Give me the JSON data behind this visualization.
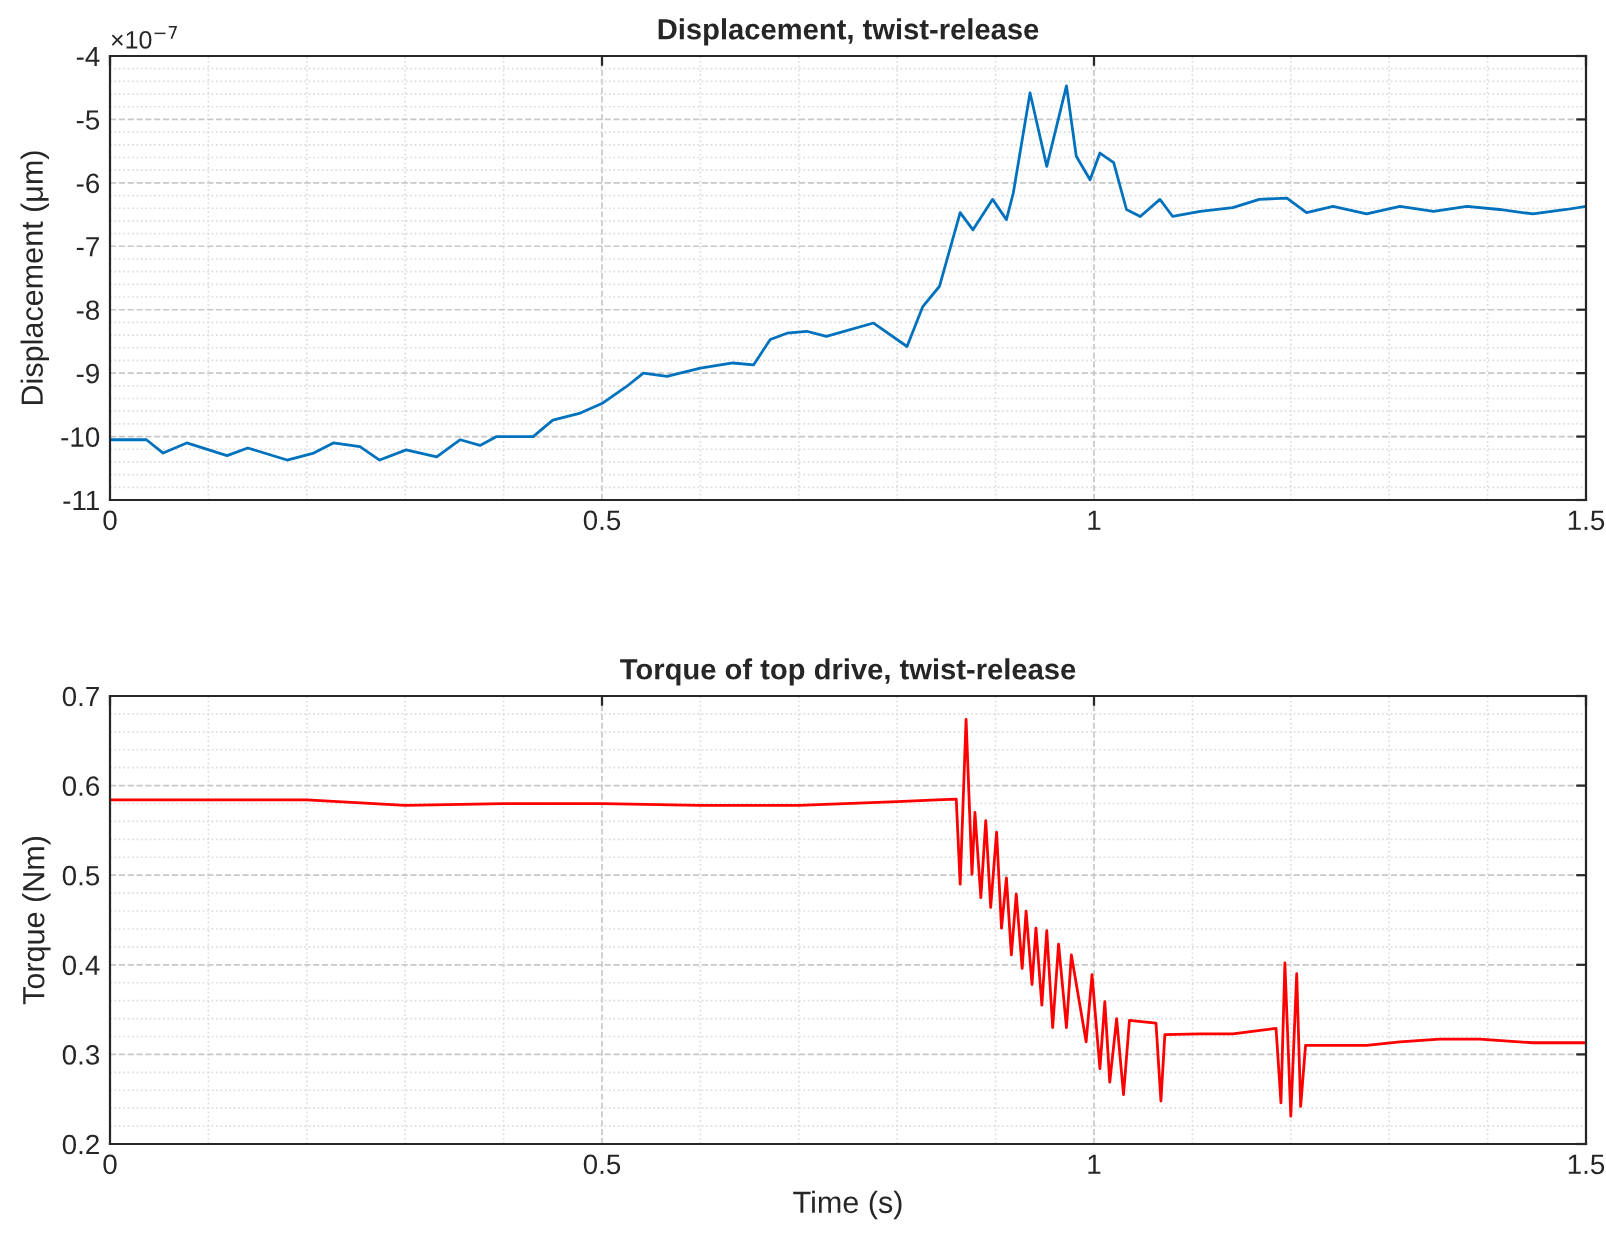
{
  "chart_data": [
    {
      "type": "line",
      "title": "Displacement, twist-release",
      "ylabel": "Displacement (μm)",
      "annotations": [
        "×10$^{−7}$"
      ],
      "xlim": [
        0,
        1.5
      ],
      "ylim": [
        -11,
        -4
      ],
      "xticks": [
        0,
        0.5,
        1,
        1.5
      ],
      "yticks": [
        -11,
        -10,
        -9,
        -8,
        -7,
        -6,
        -5,
        -4
      ],
      "grid": true,
      "series": [
        {
          "color": "#0072bd",
          "x": [
            0,
            0.037,
            0.054,
            0.078,
            0.119,
            0.14,
            0.18,
            0.207,
            0.227,
            0.254,
            0.274,
            0.301,
            0.332,
            0.356,
            0.376,
            0.393,
            0.43,
            0.45,
            0.478,
            0.501,
            0.525,
            0.542,
            0.566,
            0.6,
            0.633,
            0.654,
            0.671,
            0.688,
            0.708,
            0.728,
            0.776,
            0.81,
            0.826,
            0.843,
            0.864,
            0.877,
            0.897,
            0.911,
            0.918,
            0.935,
            0.952,
            0.972,
            0.982,
            0.996,
            1.006,
            1.02,
            1.033,
            1.047,
            1.067,
            1.08,
            1.108,
            1.141,
            1.168,
            1.196,
            1.216,
            1.243,
            1.277,
            1.311,
            1.345,
            1.379,
            1.412,
            1.446,
            1.48,
            1.5
          ],
          "values": [
            -10.05,
            -10.05,
            -10.26,
            -10.1,
            -10.3,
            -10.18,
            -10.37,
            -10.26,
            -10.1,
            -10.16,
            -10.37,
            -10.21,
            -10.32,
            -10.05,
            -10.14,
            -10.0,
            -10.0,
            -9.74,
            -9.63,
            -9.47,
            -9.21,
            -9.0,
            -9.05,
            -8.92,
            -8.84,
            -8.87,
            -8.47,
            -8.37,
            -8.34,
            -8.42,
            -8.21,
            -8.58,
            -7.95,
            -7.63,
            -6.47,
            -6.74,
            -6.26,
            -6.58,
            -6.16,
            -4.58,
            -5.74,
            -4.47,
            -5.58,
            -5.95,
            -5.53,
            -5.68,
            -6.42,
            -6.53,
            -6.26,
            -6.53,
            -6.45,
            -6.39,
            -6.26,
            -6.24,
            -6.47,
            -6.37,
            -6.49,
            -6.37,
            -6.45,
            -6.37,
            -6.42,
            -6.49,
            -6.42,
            -6.37
          ]
        }
      ]
    },
    {
      "type": "line",
      "title": "Torque of top drive, twist-release",
      "xlabel": "Time (s)",
      "ylabel": "Torque (Nm)",
      "xlim": [
        0,
        1.5
      ],
      "ylim": [
        0.2,
        0.7
      ],
      "xticks": [
        0,
        0.5,
        1,
        1.5
      ],
      "yticks": [
        0.2,
        0.3,
        0.4,
        0.5,
        0.6,
        0.7
      ],
      "grid": true,
      "series": [
        {
          "color": "#ff0000",
          "x": [
            0,
            0.1,
            0.2,
            0.3,
            0.4,
            0.5,
            0.6,
            0.7,
            0.8,
            0.84,
            0.86,
            0.864,
            0.87,
            0.876,
            0.879,
            0.885,
            0.89,
            0.895,
            0.901,
            0.906,
            0.911,
            0.916,
            0.921,
            0.927,
            0.931,
            0.937,
            0.941,
            0.947,
            0.952,
            0.958,
            0.964,
            0.972,
            0.977,
            0.992,
            0.998,
            1.006,
            1.011,
            1.016,
            1.023,
            1.03,
            1.036,
            1.063,
            1.068,
            1.072,
            1.108,
            1.141,
            1.185,
            1.19,
            1.194,
            1.2,
            1.206,
            1.21,
            1.215,
            1.243,
            1.277,
            1.311,
            1.351,
            1.392,
            1.446,
            1.5
          ],
          "values": [
            0.584,
            0.584,
            0.584,
            0.578,
            0.58,
            0.58,
            0.578,
            0.578,
            0.582,
            0.584,
            0.585,
            0.49,
            0.674,
            0.501,
            0.57,
            0.475,
            0.561,
            0.464,
            0.548,
            0.441,
            0.497,
            0.411,
            0.479,
            0.396,
            0.46,
            0.378,
            0.441,
            0.355,
            0.438,
            0.33,
            0.423,
            0.33,
            0.411,
            0.314,
            0.389,
            0.284,
            0.359,
            0.269,
            0.34,
            0.255,
            0.338,
            0.335,
            0.248,
            0.322,
            0.323,
            0.323,
            0.329,
            0.246,
            0.402,
            0.231,
            0.39,
            0.242,
            0.31,
            0.31,
            0.31,
            0.314,
            0.317,
            0.317,
            0.313,
            0.313
          ]
        }
      ]
    }
  ]
}
